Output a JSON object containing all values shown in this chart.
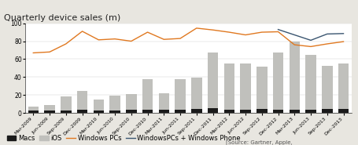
{
  "title": "Quarterly device sales (m)",
  "x_labels": [
    "Mar-2009",
    "Jun-2009",
    "Sep-2009",
    "Dec-2009",
    "Mar-2010",
    "Jun-2010",
    "Sep-2010",
    "Dec-2010",
    "Mar-2011",
    "Jun-2011",
    "Sep-2011",
    "Dec-2011",
    "Mar-2012",
    "Jun-2012",
    "Sep-2012",
    "Dec-2012",
    "Mar-2013",
    "Jun-2013",
    "Sep-2013",
    "Dec-2013"
  ],
  "macs": [
    3.0,
    3.0,
    3.3,
    3.4,
    2.9,
    3.3,
    3.6,
    4.1,
    3.7,
    3.8,
    4.9,
    5.2,
    4.0,
    4.0,
    4.9,
    4.1,
    3.8,
    3.8,
    4.9,
    4.6
  ],
  "ios": [
    4.5,
    6.0,
    15.0,
    21.5,
    12.0,
    16.0,
    18.0,
    34.0,
    18.0,
    34.0,
    35.0,
    62.0,
    51.0,
    51.0,
    47.0,
    63.0,
    75.5,
    61.0,
    48.0,
    51.0
  ],
  "win_pcs": [
    67.0,
    68.0,
    77.0,
    91.0,
    81.5,
    82.5,
    80.0,
    90.0,
    82.0,
    83.0,
    94.5,
    92.5,
    90.0,
    87.0,
    90.0,
    90.5,
    76.0,
    74.0,
    77.0,
    79.5
  ],
  "win_pcs_phone": [
    null,
    null,
    null,
    null,
    null,
    null,
    null,
    null,
    null,
    null,
    null,
    null,
    null,
    null,
    null,
    93.0,
    87.0,
    81.0,
    88.0,
    88.5
  ],
  "ylim": [
    0,
    100
  ],
  "yticks": [
    0,
    20,
    40,
    60,
    80,
    100
  ],
  "bar_color_macs": "#1a1a1a",
  "bar_color_ios": "#c0c0bc",
  "line_color_winpcs": "#e07820",
  "line_color_winphone": "#3a5570",
  "source_text": "[Source: Gartner, Apple,",
  "title_bg_color": "#e8e6e0",
  "plot_bg_color": "#ffffff",
  "fig_bg_color": "#e8e6e0",
  "title_fontsize": 8,
  "legend_fontsize": 6
}
